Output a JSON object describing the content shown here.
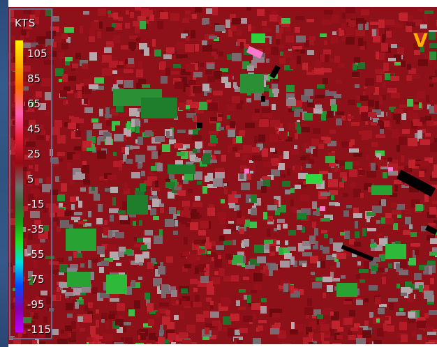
{
  "legend": {
    "unit": "KTS",
    "labels": [
      "105",
      "85",
      "65",
      "45",
      "25",
      "5",
      "-15",
      "-35",
      "-55",
      "-75",
      "-95",
      "-115"
    ]
  },
  "product_letter": "V",
  "colors": {
    "background_red": "#8e1019",
    "velocity_scale_top": "#fff200",
    "velocity_scale_bottom": "#c000ff",
    "inbound_green": "#1f9a2a",
    "gray_noise": "#8e7f86",
    "pink": "#ff70c8",
    "black_blocks": "#000000",
    "product_letter": "#ffb000"
  }
}
